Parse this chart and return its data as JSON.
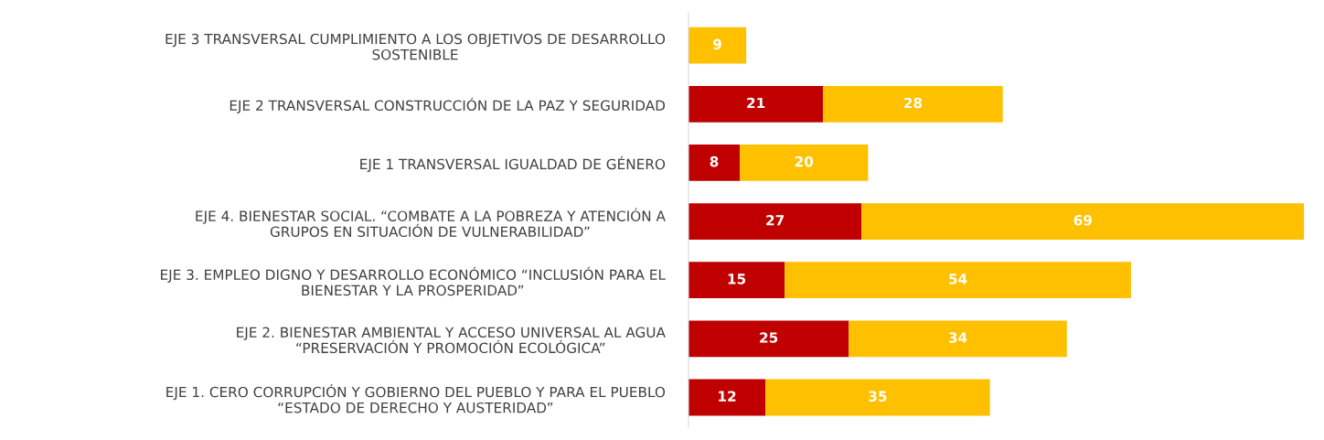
{
  "chart_data": {
    "type": "bar",
    "orientation": "horizontal",
    "stacked": true,
    "tick_labels": "y",
    "grid": false,
    "legend": false,
    "categories": [
      "EJE 3 TRANSVERSAL CUMPLIMIENTO A LOS OBJETIVOS DE DESARROLLO\nSOSTENIBLE",
      "EJE 2 TRANSVERSAL CONSTRUCCIÓN DE LA PAZ Y SEGURIDAD",
      "EJE 1 TRANSVERSAL IGUALDAD DE GÉNERO",
      "EJE 4. BIENESTAR SOCIAL. “COMBATE A LA POBREZA Y ATENCIÓN A\nGRUPOS EN SITUACIÓN DE VULNERABILIDAD”",
      "EJE 3. EMPLEO DIGNO Y DESARROLLO ECONÓMICO “INCLUSIÓN PARA EL\nBIENESTAR Y LA PROSPERIDAD”",
      "EJE 2. BIENESTAR AMBIENTAL Y ACCESO UNIVERSAL AL AGUA\n“PRESERVACIÓN Y PROMOCIÓN ECOLÓGICA”",
      "EJE 1. CERO CORRUPCIÓN Y GOBIERNO DEL PUEBLO Y PARA EL PUEBLO\n“ESTADO DE DERECHO Y AUSTERIDAD”"
    ],
    "series": [
      {
        "color": "#c00000",
        "values": [
          0,
          21,
          8,
          27,
          15,
          25,
          12
        ],
        "value_labels": [
          null,
          "21",
          "8",
          "27",
          "15",
          "25",
          "12"
        ]
      },
      {
        "color": "#ffc000",
        "values": [
          9,
          28,
          20,
          69,
          54,
          34,
          35
        ],
        "value_labels": [
          "9",
          "28",
          "20",
          "69",
          "54",
          "34",
          "35"
        ]
      }
    ]
  }
}
